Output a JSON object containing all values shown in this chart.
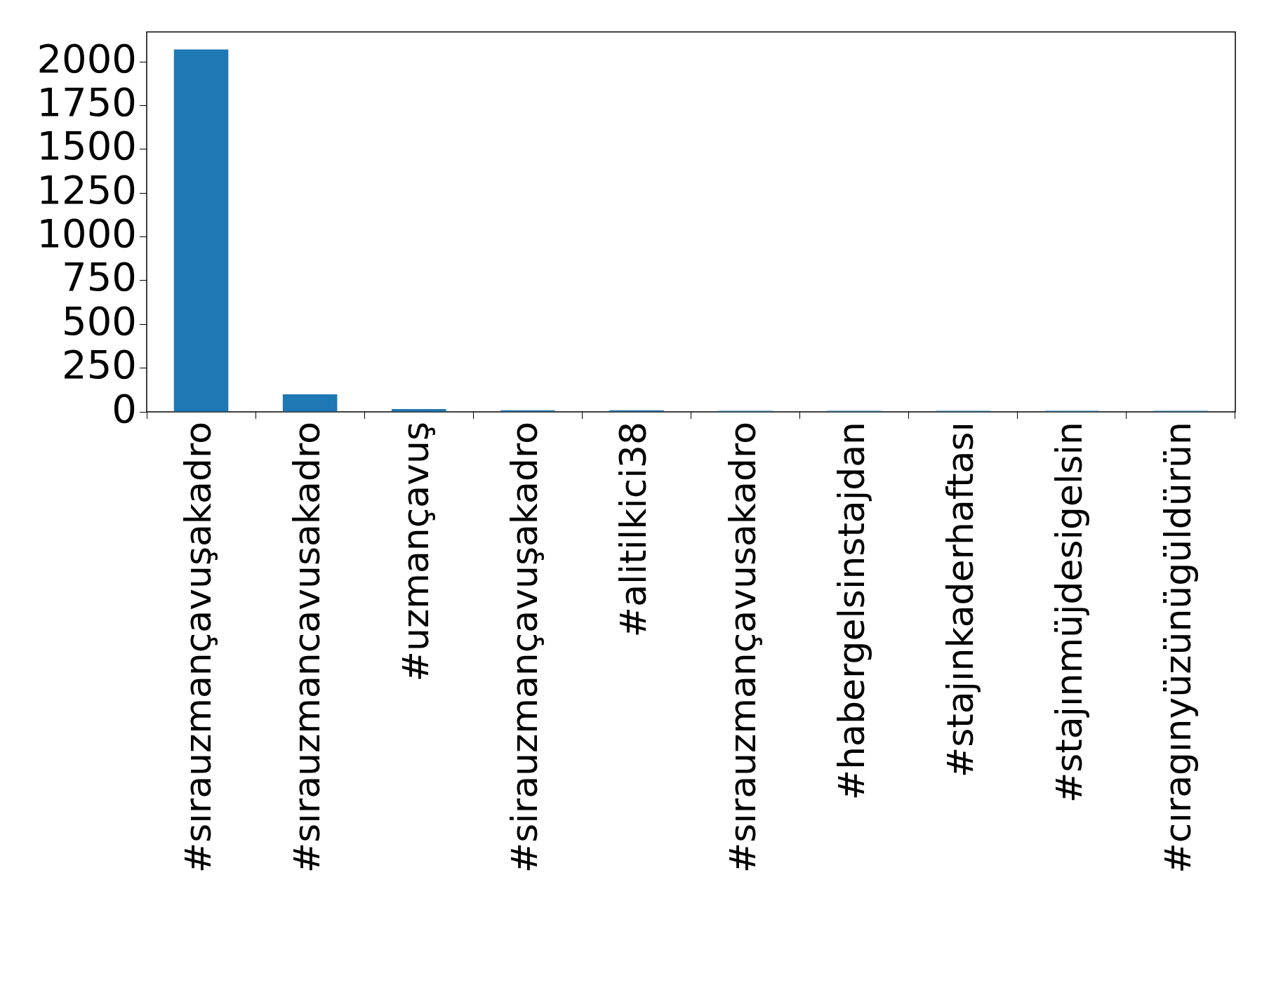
{
  "chart_data": {
    "type": "bar",
    "categories": [
      "#sırauzmançavuşakadro",
      "#sırauzmancavusakadro",
      "#uzmançavuş",
      "#sirauzmançavuşakadro",
      "#alitilkici38",
      "#sırauzmançavusakadro",
      "#habergelsinstajdan",
      "#stajınkaderhaftası",
      "#stajınmüjdesigelsin",
      "#cıragınyüzünügüldürün"
    ],
    "values": [
      2070,
      100,
      16,
      9,
      9,
      6,
      6,
      6,
      6,
      6
    ],
    "color": "#1f77b4",
    "ylim": [
      0,
      2170
    ],
    "yticks": [
      0,
      250,
      500,
      750,
      1000,
      1250,
      1500,
      1750,
      2000
    ],
    "grid": false,
    "legend": false
  }
}
